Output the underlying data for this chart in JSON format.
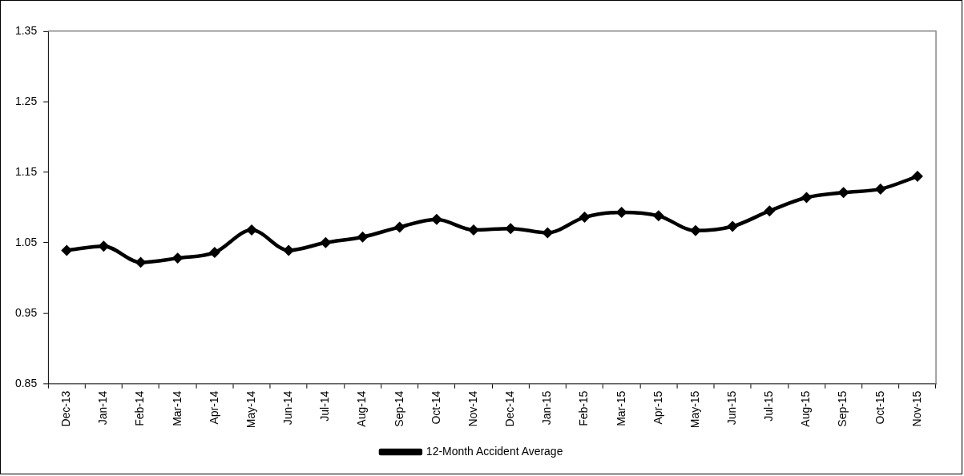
{
  "chart_data": {
    "type": "line",
    "categories": [
      "Dec-13",
      "Jan-14",
      "Feb-14",
      "Mar-14",
      "Apr-14",
      "May-14",
      "Jun-14",
      "Jul-14",
      "Aug-14",
      "Sep-14",
      "Oct-14",
      "Nov-14",
      "Dec-14",
      "Jan-15",
      "Feb-15",
      "Mar-15",
      "Apr-15",
      "May-15",
      "Jun-15",
      "Jul-15",
      "Aug-15",
      "Sep-15",
      "Oct-15",
      "Nov-15"
    ],
    "series": [
      {
        "name": "12-Month Accident Average",
        "color": "#000000",
        "values": [
          1.039,
          1.045,
          1.022,
          1.028,
          1.036,
          1.068,
          1.039,
          1.05,
          1.058,
          1.072,
          1.083,
          1.068,
          1.07,
          1.064,
          1.086,
          1.093,
          1.088,
          1.067,
          1.073,
          1.095,
          1.114,
          1.121,
          1.126,
          1.144
        ]
      }
    ],
    "ylim": [
      0.85,
      1.35
    ],
    "yticks": [
      0.85,
      0.95,
      1.05,
      1.15,
      1.25,
      1.35
    ],
    "grid": false,
    "legend": "bottom",
    "marker": "diamond",
    "line_style": "solid"
  }
}
